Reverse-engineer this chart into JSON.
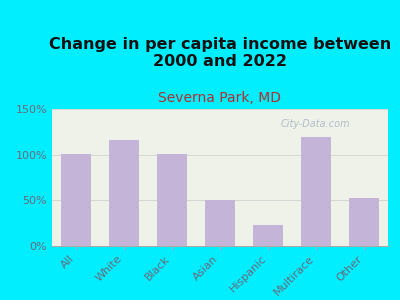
{
  "title": "Change in per capita income between\n2000 and 2022",
  "subtitle": "Severna Park, MD",
  "categories": [
    "All",
    "White",
    "Black",
    "Asian",
    "Hispanic",
    "Multirace",
    "Other"
  ],
  "values": [
    101,
    116,
    101,
    50,
    23,
    120,
    53
  ],
  "bar_color": "#c4b4d8",
  "title_fontsize": 11.5,
  "subtitle_fontsize": 10,
  "subtitle_color": "#b03030",
  "background_color": "#00eeff",
  "plot_bg": "#eef2e8",
  "ylim": [
    0,
    150
  ],
  "yticks": [
    0,
    50,
    100,
    150
  ],
  "ytick_labels": [
    "0%",
    "50%",
    "100%",
    "150%"
  ],
  "watermark": "City-Data.com",
  "watermark_color": "#a8b4c4",
  "tick_label_color": "#6a6a7a",
  "spine_color": "#aaaaaa"
}
